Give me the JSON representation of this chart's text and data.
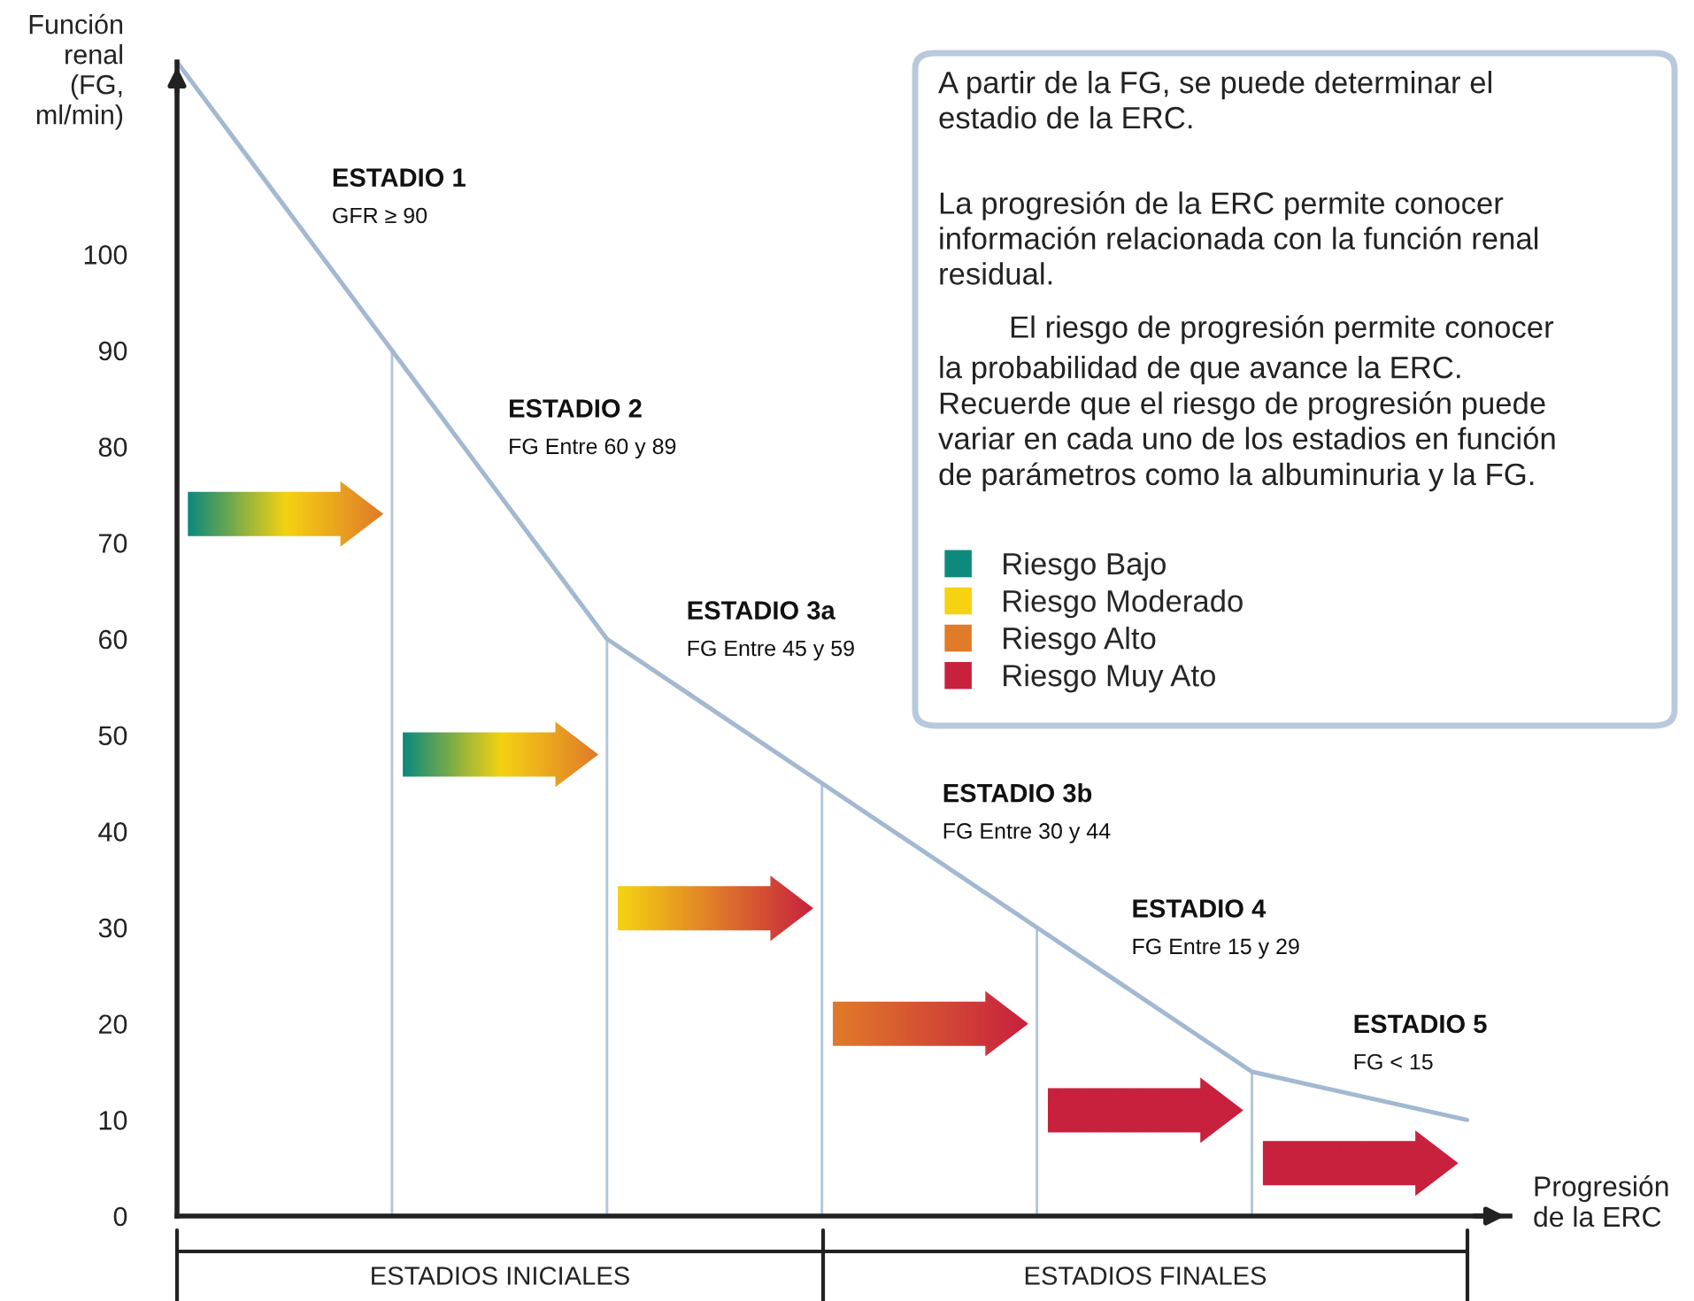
{
  "chart_data": {
    "type": "line",
    "categories": [
      null,
      null,
      null,
      null,
      null,
      null,
      null
    ],
    "series": [
      {
        "color": "#a3b8d1",
        "values": [
          120,
          90,
          60,
          45,
          30,
          15,
          10
        ]
      },
      {
        "type": "bar",
        "color": "#b4c6d8",
        "values": [
          null,
          90,
          60,
          45,
          30,
          15,
          null
        ]
      },
      {
        "type": "scatter",
        "marker": "square",
        "name": "Riesgo Bajo",
        "color": "#0e8a7c",
        "values": [
          null,
          null,
          null,
          null,
          null,
          null,
          null
        ]
      },
      {
        "type": "scatter",
        "marker": "square",
        "name": "Riesgo Moderado",
        "color": "#f5d312",
        "values": [
          null,
          null,
          null,
          null,
          null,
          null,
          null
        ]
      },
      {
        "type": "scatter",
        "marker": "square",
        "name": "Riesgo Alto",
        "color": "#e07b2a",
        "values": [
          null,
          null,
          null,
          null,
          null,
          null,
          null
        ]
      },
      {
        "type": "scatter",
        "marker": "square",
        "name": "Riesgo Muy Ato",
        "color": "#c8213e",
        "values": [
          null,
          null,
          null,
          null,
          null,
          null,
          null
        ]
      }
    ],
    "ylabel": "Función\nrenal\n(FG,\nml/min)",
    "xlabel": "Progresión\nde la ERC",
    "ylim": [
      0,
      120
    ],
    "yticks": [
      0,
      10,
      20,
      30,
      40,
      50,
      60,
      70,
      80,
      90,
      100
    ],
    "tick_labels": "y",
    "legend": "top right",
    "annotations": [
      "ESTADIO 1\nGFR ≥ 90",
      "ESTADIO 2\nFG Entre 60 y 89",
      "ESTADIO 3a\nFG Entre 45 y 59",
      "ESTADIO 3b\nFG Entre 30 y 44",
      "ESTADIO 4\nFG Entre 15 y 29",
      "ESTADIO 5\nFG < 15",
      "A partir de la FG, se puede determinar el\nestadio de la ERC.",
      "La progresión de la ERC permite conocer\ninformación relacionada con la función renal\nresidual.",
      "El riesgo de progresión permite conocer\nla probabilidad de que avance la ERC.\nRecuerde que el riesgo de progresión puede\nvariar en cada uno de los estadios en función\nde parámetros como la albuminuria y la FG.",
      "ESTADIOS INICIALES",
      "ESTADIOS FINALES"
    ]
  }
}
